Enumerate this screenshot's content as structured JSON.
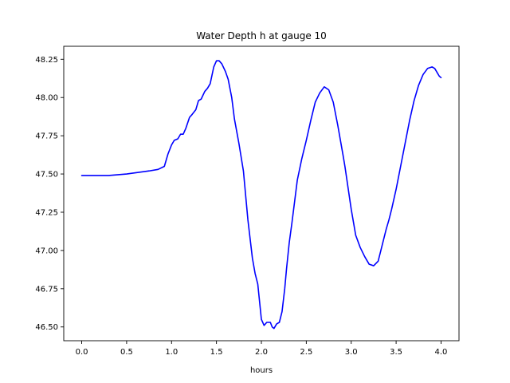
{
  "chart_data": {
    "type": "line",
    "title": "Water Depth h at gauge 10",
    "xlabel": "hours",
    "ylabel": "",
    "xlim": [
      -0.2,
      4.2
    ],
    "ylim": [
      46.41,
      48.335
    ],
    "grid": false,
    "xticks": [
      0.0,
      0.5,
      1.0,
      1.5,
      2.0,
      2.5,
      3.0,
      3.5,
      4.0
    ],
    "xtick_labels": [
      "0.0",
      "0.5",
      "1.0",
      "1.5",
      "2.0",
      "2.5",
      "3.0",
      "3.5",
      "4.0"
    ],
    "yticks": [
      46.5,
      46.75,
      47.0,
      47.25,
      47.5,
      47.75,
      48.0,
      48.25
    ],
    "ytick_labels": [
      "46.50",
      "46.75",
      "47.00",
      "47.25",
      "47.50",
      "47.75",
      "48.00",
      "48.25"
    ],
    "series": [
      {
        "color": "#0000ff",
        "x": [
          0.0,
          0.3,
          0.5,
          0.75,
          0.85,
          0.92,
          0.96,
          1.0,
          1.03,
          1.07,
          1.1,
          1.13,
          1.16,
          1.2,
          1.23,
          1.27,
          1.3,
          1.33,
          1.37,
          1.4,
          1.43,
          1.47,
          1.5,
          1.53,
          1.56,
          1.6,
          1.63,
          1.67,
          1.7,
          1.75,
          1.8,
          1.85,
          1.9,
          1.93,
          1.96,
          2.0,
          2.03,
          2.06,
          2.1,
          2.12,
          2.14,
          2.17,
          2.2,
          2.23,
          2.26,
          2.28,
          2.31,
          2.34,
          2.37,
          2.4,
          2.45,
          2.5,
          2.55,
          2.6,
          2.65,
          2.7,
          2.75,
          2.8,
          2.85,
          2.88,
          2.91,
          2.93,
          2.96,
          3.0,
          3.05,
          3.1,
          3.15,
          3.2,
          3.25,
          3.3,
          3.33,
          3.36,
          3.39,
          3.42,
          3.45,
          3.5,
          3.55,
          3.6,
          3.65,
          3.7,
          3.75,
          3.8,
          3.85,
          3.9,
          3.93,
          3.96,
          3.98,
          4.0
        ],
        "y": [
          47.49,
          47.49,
          47.5,
          47.52,
          47.53,
          47.55,
          47.63,
          47.69,
          47.72,
          47.73,
          47.76,
          47.76,
          47.8,
          47.87,
          47.89,
          47.92,
          47.98,
          47.99,
          48.04,
          48.06,
          48.09,
          48.2,
          48.24,
          48.24,
          48.22,
          48.17,
          48.12,
          48.0,
          47.86,
          47.7,
          47.52,
          47.2,
          46.95,
          46.85,
          46.78,
          46.55,
          46.51,
          46.53,
          46.53,
          46.5,
          46.49,
          46.52,
          46.53,
          46.6,
          46.75,
          46.88,
          47.05,
          47.18,
          47.32,
          47.46,
          47.6,
          47.72,
          47.85,
          47.97,
          48.03,
          48.07,
          48.05,
          47.97,
          47.82,
          47.72,
          47.62,
          47.55,
          47.43,
          47.27,
          47.1,
          47.02,
          46.96,
          46.91,
          46.9,
          46.93,
          47.0,
          47.07,
          47.14,
          47.2,
          47.27,
          47.4,
          47.55,
          47.7,
          47.85,
          47.98,
          48.08,
          48.15,
          48.19,
          48.2,
          48.19,
          48.16,
          48.14,
          48.13
        ]
      }
    ]
  }
}
